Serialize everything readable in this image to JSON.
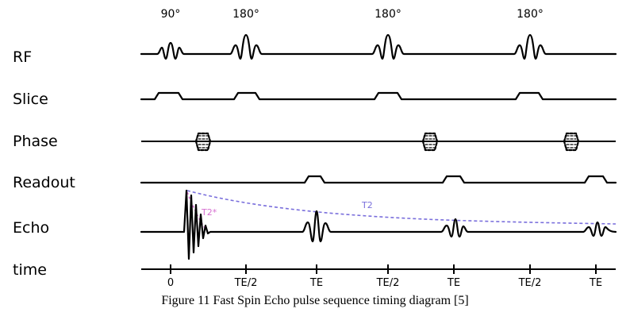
{
  "rows": {
    "rf": "RF",
    "slice": "Slice",
    "phase": "Phase",
    "readout": "Readout",
    "echo": "Echo",
    "time": "time"
  },
  "pulses": {
    "excite": "90°",
    "refocus_1": "180°",
    "refocus_2": "180°",
    "refocus_3": "180°"
  },
  "decay": {
    "t2": "T2",
    "t2star": "T2*"
  },
  "ticks": [
    "0",
    "TE/2",
    "TE",
    "TE/2",
    "TE",
    "TE/2",
    "TE"
  ],
  "caption": "Figure 11 Fast Spin Echo pulse sequence timing diagram [5]"
}
